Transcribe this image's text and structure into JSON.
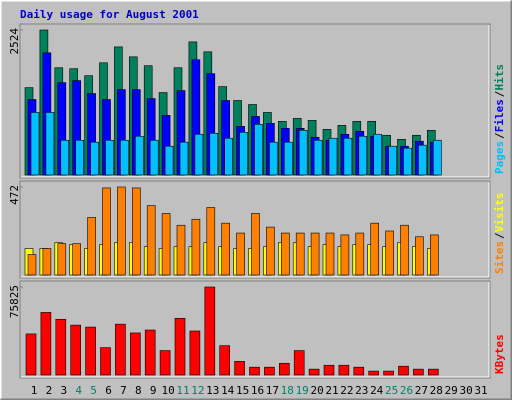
{
  "chart_data": [
    {
      "type": "bar",
      "title": "Daily usage for August 2001",
      "title_color": "#0000c0",
      "ylim": [
        0,
        2524
      ],
      "yticks": [
        2524
      ],
      "legend_separator": "/",
      "legend_position": "right",
      "series": [
        {
          "name": "Hits",
          "color": "#00805c",
          "values": [
            1521,
            2524,
            1867,
            1850,
            1729,
            1953,
            2230,
            2057,
            1902,
            1435,
            1867,
            2317,
            2144,
            1539,
            1297,
            1227,
            1089,
            934,
            985,
            951,
            795,
            864,
            934,
            934,
            692,
            622,
            692,
            778,
            0,
            0,
            0
          ]
        },
        {
          "name": "Files",
          "color": "#0000ff",
          "values": [
            1314,
            2127,
            1608,
            1643,
            1418,
            1314,
            1487,
            1487,
            1331,
            1037,
            1470,
            2006,
            1764,
            1297,
            847,
            1020,
            899,
            813,
            813,
            657,
            605,
            709,
            761,
            674,
            501,
            501,
            588,
            571,
            0,
            0,
            0
          ]
        },
        {
          "name": "Pages",
          "color": "#00c0ff",
          "values": [
            1089,
            1089,
            605,
            605,
            571,
            605,
            605,
            674,
            605,
            501,
            571,
            709,
            726,
            640,
            743,
            882,
            571,
            571,
            778,
            605,
            640,
            640,
            674,
            709,
            501,
            467,
            519,
            605,
            0,
            0,
            0
          ]
        }
      ]
    },
    {
      "type": "bar",
      "ylim": [
        0,
        472
      ],
      "yticks": [
        472
      ],
      "legend_separator": "/",
      "legend_position": "right",
      "series": [
        {
          "name": "Visits",
          "color": "#ffff00",
          "values": [
            142,
            142,
            173,
            163,
            142,
            163,
            173,
            173,
            152,
            142,
            152,
            152,
            173,
            152,
            142,
            142,
            152,
            173,
            173,
            152,
            163,
            152,
            163,
            163,
            152,
            173,
            152,
            142,
            0,
            0,
            0
          ]
        },
        {
          "name": "Sites",
          "color": "#ff8000",
          "values": [
            110,
            142,
            168,
            168,
            309,
            467,
            472,
            467,
            372,
            330,
            267,
            299,
            362,
            278,
            225,
            330,
            257,
            225,
            225,
            225,
            225,
            215,
            225,
            278,
            236,
            267,
            205,
            215,
            0,
            0,
            0
          ]
        }
      ]
    },
    {
      "type": "bar",
      "ylim": [
        0,
        75825
      ],
      "yticks": [
        75825
      ],
      "legend_position": "right",
      "series": [
        {
          "name": "KBytes",
          "color": "#ff0000",
          "values": [
            35385,
            53920,
            48023,
            42968,
            41283,
            23590,
            43810,
            36228,
            38755,
            21063,
            48865,
            37913,
            75825,
            25275,
            11795,
            6740,
            6740,
            10110,
            21063,
            5055,
            8425,
            8425,
            6740,
            3370,
            3370,
            7583,
            5055,
            5055,
            0,
            0,
            0
          ]
        }
      ],
      "categories": [
        "1",
        "2",
        "3",
        "4",
        "5",
        "6",
        "7",
        "8",
        "9",
        "10",
        "11",
        "12",
        "13",
        "14",
        "15",
        "16",
        "17",
        "18",
        "19",
        "20",
        "21",
        "22",
        "23",
        "24",
        "25",
        "26",
        "27",
        "28",
        "29",
        "30",
        "31"
      ],
      "category_color": "#000000",
      "highlight_categories": [
        3,
        4,
        10,
        11,
        17,
        18,
        24,
        25
      ],
      "highlight_color": "#00806a"
    }
  ]
}
